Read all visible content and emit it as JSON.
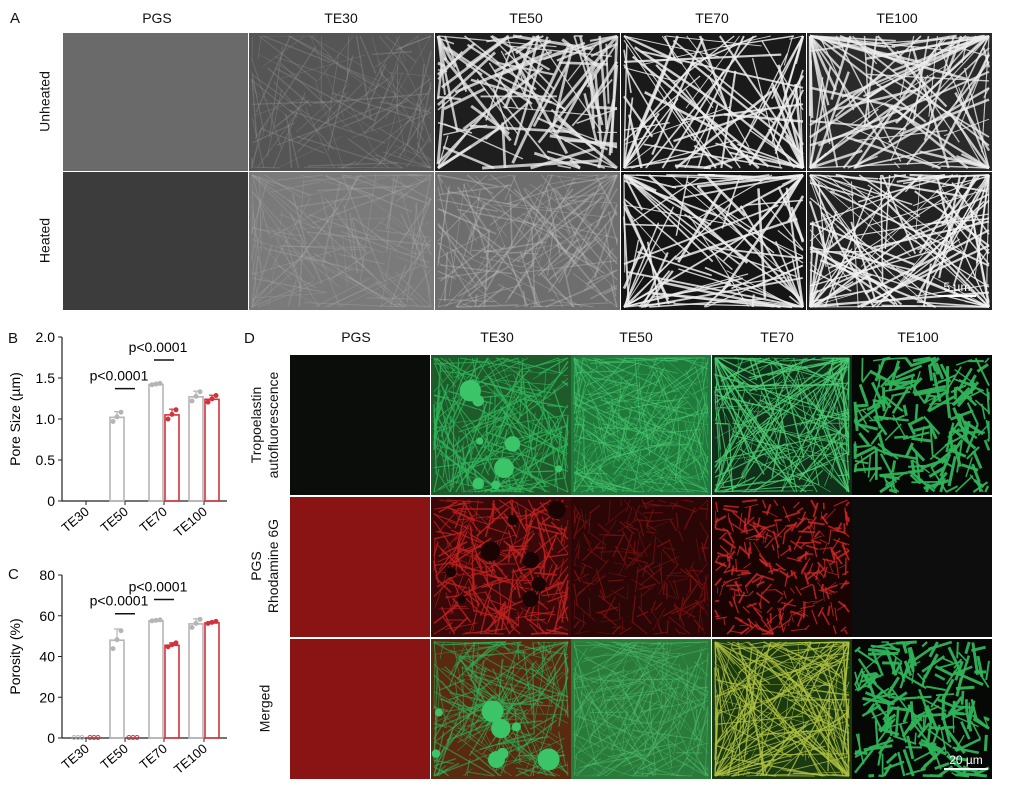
{
  "panel_a": {
    "label": "A",
    "columns": [
      "PGS",
      "TE30",
      "TE50",
      "TE70",
      "TE100"
    ],
    "rows": [
      "Unheated",
      "Heated"
    ],
    "scale_bar": "5 µm"
  },
  "panel_d": {
    "label": "D",
    "columns": [
      "PGS",
      "TE30",
      "TE50",
      "TE70",
      "TE100"
    ],
    "rows": [
      {
        "line1": "Tropoelastin",
        "line2": "autofluorescence"
      },
      {
        "line1": "PGS",
        "line2": "Rhodamine 6G"
      },
      {
        "line1": "Merged",
        "line2": ""
      }
    ],
    "scale_bar": "20 µm"
  },
  "colors": {
    "unheated": "#b5b5b5",
    "heated": "#d2323c",
    "green": "#2fb35a",
    "red": "#b01818"
  },
  "chart_data": [
    {
      "panel": "B",
      "type": "bar",
      "ylabel": "Pore Size (µm)",
      "categories": [
        "TE30",
        "TE50",
        "TE70",
        "TE100"
      ],
      "ylim": [
        0,
        2.0
      ],
      "yticks": [
        "0",
        "0.5",
        "1.0",
        "1.5",
        "2.0"
      ],
      "ytick_values": [
        0,
        0.5,
        1.0,
        1.5,
        2.0
      ],
      "series": [
        {
          "color": "#b5b5b5",
          "values": [
            null,
            1.02,
            1.42,
            1.27
          ],
          "err": [
            0,
            0.07,
            0.01,
            0.07
          ]
        },
        {
          "color": "#d2323c",
          "values": [
            null,
            null,
            1.05,
            1.24
          ],
          "err": [
            0,
            0,
            0.07,
            0.05
          ]
        }
      ],
      "annotations": [
        {
          "text": "p<0.0001",
          "category": "TE50",
          "y": 1.37
        },
        {
          "text": "p<0.0001",
          "category": "TE70",
          "y": 1.72
        }
      ]
    },
    {
      "panel": "C",
      "type": "bar",
      "ylabel": "Porosity (%)",
      "categories": [
        "TE30",
        "TE50",
        "TE70",
        "TE100"
      ],
      "ylim": [
        0,
        80
      ],
      "yticks": [
        "0",
        "20",
        "40",
        "60",
        "80"
      ],
      "ytick_values": [
        0,
        20,
        40,
        60,
        80
      ],
      "series": [
        {
          "color": "#b5b5b5",
          "values": [
            0,
            48,
            57.5,
            56
          ],
          "err": [
            0,
            5.5,
            0.3,
            2.5
          ]
        },
        {
          "color": "#d2323c",
          "values": [
            0,
            0,
            45.5,
            56.5
          ],
          "err": [
            0,
            0,
            1.2,
            0.6
          ]
        }
      ],
      "annotations": [
        {
          "text": "p<0.0001",
          "category": "TE50",
          "y": 61
        },
        {
          "text": "p<0.0001",
          "category": "TE70",
          "y": 68
        }
      ]
    }
  ]
}
